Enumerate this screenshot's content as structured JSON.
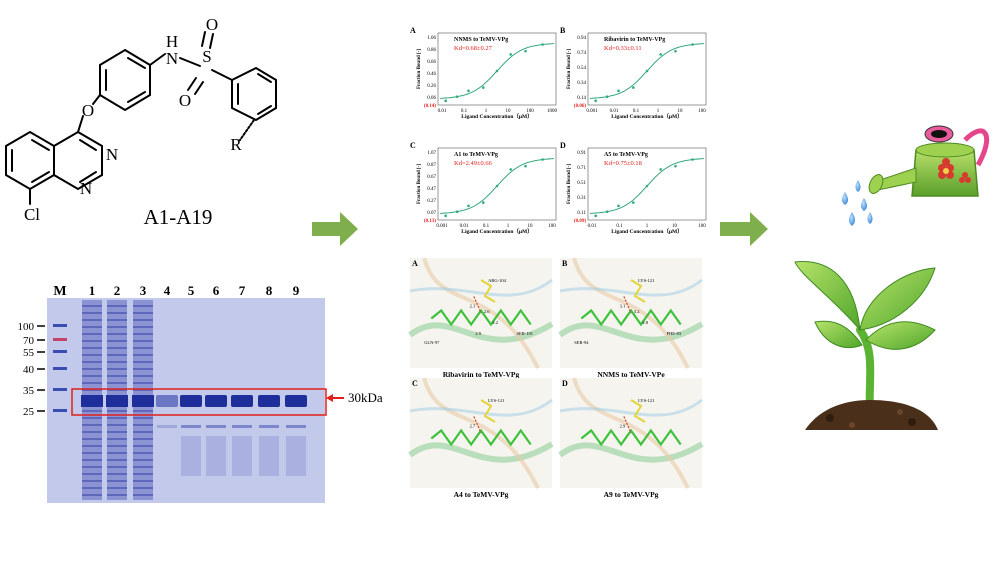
{
  "chem": {
    "name": "A1-A19",
    "atoms": {
      "O": "O",
      "H": "H",
      "N": "N",
      "S": "S",
      "R": "R",
      "Cl": "Cl"
    }
  },
  "gel": {
    "marker_label": "M",
    "lane_labels": [
      "1",
      "2",
      "3",
      "4",
      "5",
      "6",
      "7",
      "8",
      "9"
    ],
    "mw_labels": [
      "100",
      "70",
      "55",
      "40",
      "35",
      "25"
    ],
    "band_label": "30kDa"
  },
  "mst": {
    "xlabel": "Ligand Concentration（μM）",
    "ylabel": "Fraction Bound [-]",
    "panels": [
      {
        "letter": "A",
        "title": "NNMS to TeMV-VPg",
        "kd": "Kd=0.68±0.27",
        "yticks": [
          "1.06",
          "0.86",
          "0.66",
          "0.46",
          "0.26",
          "0.06"
        ],
        "ymin": "(0.14)",
        "xticks": [
          "0.01",
          "0.1",
          "1",
          "10",
          "100",
          "1000"
        ]
      },
      {
        "letter": "B",
        "title": "Ribavirin to TeMV-VPg",
        "kd": "Kd=0.33±0.11",
        "yticks": [
          "0.94",
          "0.74",
          "0.54",
          "0.34",
          "0.14"
        ],
        "ymin": "(0.06)",
        "xticks": [
          "0.001",
          "0.01",
          "0.1",
          "1",
          "10",
          "100"
        ]
      },
      {
        "letter": "C",
        "title": "A1 to TeMV-VPg",
        "kd": "Kd=2.49±0.66",
        "yticks": [
          "1.07",
          "0.87",
          "0.67",
          "0.47",
          "0.27",
          "0.07"
        ],
        "ymin": "(0.13)",
        "xticks": [
          "0.001",
          "0.01",
          "0.1",
          "1",
          "10",
          "100"
        ]
      },
      {
        "letter": "D",
        "title": "A5 to TeMV-VPg",
        "kd": "Kd=0.75±0.18",
        "yticks": [
          "0.91",
          "0.71",
          "0.51",
          "0.31",
          "0.11"
        ],
        "ymin": "(0.09)",
        "xticks": [
          "0.01",
          "0.1",
          "1",
          "10",
          "100"
        ]
      }
    ]
  },
  "docking": {
    "panels": [
      {
        "letter": "A",
        "caption": "Ribavirin to TeMV-VPg",
        "residues": [
          "ARG-104",
          "GLN-97",
          "SER-101"
        ],
        "distances": [
          "2.1",
          "2.6",
          "2.2",
          "2.9"
        ]
      },
      {
        "letter": "B",
        "caption": "NNMS to TeMV-VPe",
        "residues": [
          "LYS-121",
          "SER-94",
          "PHE-83"
        ],
        "distances": [
          "3.1",
          "3.2",
          "2.8"
        ]
      },
      {
        "letter": "C",
        "caption": "A4 to TeMV-VPg",
        "residues": [
          "LYS-121"
        ],
        "distances": [
          "2.7"
        ]
      },
      {
        "letter": "D",
        "caption": "A9 to TeMV-VPg",
        "residues": [
          "LYS-121"
        ],
        "distances": [
          "2.9"
        ]
      }
    ]
  },
  "colors": {
    "arrow": "#7fae4c",
    "fit_line": "#1f9e6e",
    "kd_text": "#e0201b",
    "gel_bg": "#bcc3e6",
    "gel_band": "#2a3da8",
    "band_box": "#e0201b",
    "leaf": "#6cc13f",
    "soil": "#4a2f1b",
    "can": "#8bc53f",
    "water": "#3a8fd8"
  },
  "icons": [
    "right-arrow-icon",
    "watering-can-icon",
    "sprout-icon",
    "soil-icon",
    "water-drop-icon",
    "flower-icon"
  ]
}
